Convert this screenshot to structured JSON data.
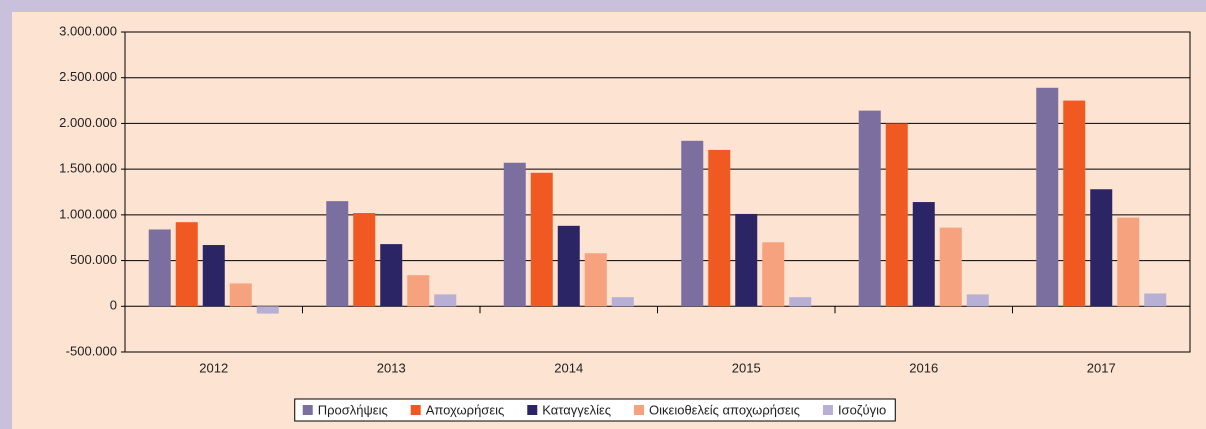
{
  "chart_data": {
    "type": "bar",
    "categories": [
      "2012",
      "2013",
      "2014",
      "2015",
      "2016",
      "2017"
    ],
    "series": [
      {
        "name": "Προσλήψεις",
        "color": "#7b6fa0",
        "values": [
          840000,
          1150000,
          1570000,
          1810000,
          2140000,
          2390000
        ]
      },
      {
        "name": "Αποχωρήσεις",
        "color": "#f05a22",
        "values": [
          920000,
          1020000,
          1460000,
          1710000,
          2000000,
          2250000
        ]
      },
      {
        "name": "Καταγγελίες",
        "color": "#2b2566",
        "values": [
          670000,
          680000,
          880000,
          1010000,
          1140000,
          1280000
        ]
      },
      {
        "name": "Οικειοθελείς αποχωρήσεις",
        "color": "#f7a27e",
        "values": [
          250000,
          340000,
          580000,
          700000,
          860000,
          970000
        ]
      },
      {
        "name": "Ισοζύγιο",
        "color": "#b7b0d4",
        "values": [
          -80000,
          130000,
          100000,
          100000,
          130000,
          140000
        ]
      }
    ],
    "ylim": [
      -500000,
      3000000
    ],
    "yticks": [
      {
        "value": -500000,
        "label": "-500.000"
      },
      0,
      {
        "value": 500000,
        "label": "500.000"
      },
      {
        "value": 1000000,
        "label": "1.000.000"
      },
      {
        "value": 1500000,
        "label": "1.500.000"
      },
      {
        "value": 2000000,
        "label": "2.000.000"
      },
      {
        "value": 2500000,
        "label": "2.500.000"
      },
      {
        "value": 3000000,
        "label": "3.000.000"
      }
    ],
    "grid": true,
    "legend": "bottom"
  }
}
